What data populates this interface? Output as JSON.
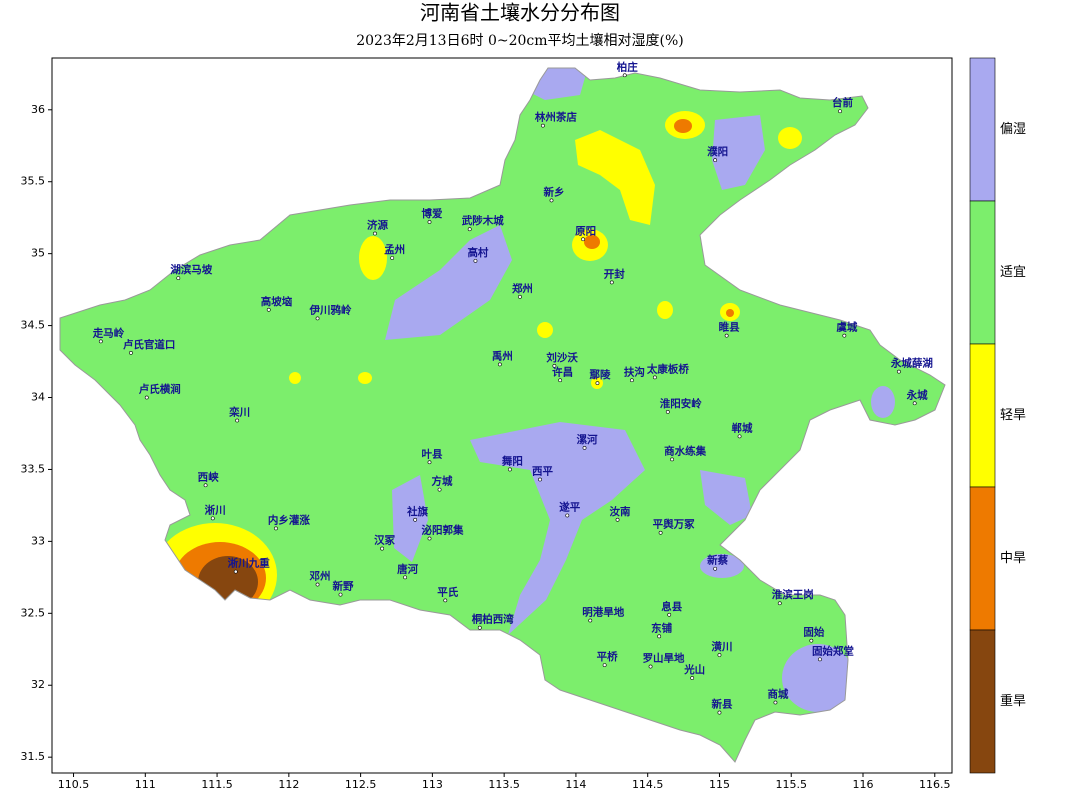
{
  "header": {
    "title": "河南省土壤水分分布图",
    "subtitle": "2023年2月13日6时 0~20cm平均土壤相对湿度(%)"
  },
  "map": {
    "xlim": [
      110.35,
      116.62
    ],
    "ylim": [
      31.39,
      36.36
    ],
    "xticks": [
      110.5,
      111,
      111.5,
      112,
      112.5,
      113,
      113.5,
      114,
      114.5,
      115,
      115.5,
      116,
      116.5
    ],
    "yticks": [
      31.5,
      32,
      32.5,
      33,
      33.5,
      34,
      34.5,
      35,
      35.5,
      36
    ],
    "stations": [
      {
        "name": "柏庄",
        "lon": 114.34,
        "lat": 36.24
      },
      {
        "name": "台前",
        "lon": 115.84,
        "lat": 35.99
      },
      {
        "name": "濮阳",
        "lon": 114.97,
        "lat": 35.65
      },
      {
        "name": "林州茶店",
        "lon": 113.77,
        "lat": 35.89
      },
      {
        "name": "郑州",
        "lon": 113.61,
        "lat": 34.7
      },
      {
        "name": "开封",
        "lon": 114.25,
        "lat": 34.8
      },
      {
        "name": "新乡",
        "lon": 113.83,
        "lat": 35.37
      },
      {
        "name": "原阳",
        "lon": 114.05,
        "lat": 35.1
      },
      {
        "name": "济源",
        "lon": 112.6,
        "lat": 35.14
      },
      {
        "name": "孟州",
        "lon": 112.72,
        "lat": 34.97
      },
      {
        "name": "博爱",
        "lon": 112.98,
        "lat": 35.22
      },
      {
        "name": "武陟木城",
        "lon": 113.26,
        "lat": 35.17
      },
      {
        "name": "高村",
        "lon": 113.3,
        "lat": 34.95
      },
      {
        "name": "湖滨马坡",
        "lon": 111.23,
        "lat": 34.83
      },
      {
        "name": "走马岭",
        "lon": 110.69,
        "lat": 34.39
      },
      {
        "name": "卢氏官道口",
        "lon": 110.9,
        "lat": 34.31
      },
      {
        "name": "卢氏横涧",
        "lon": 111.01,
        "lat": 34.0
      },
      {
        "name": "高坡垴",
        "lon": 111.86,
        "lat": 34.61
      },
      {
        "name": "伊川鸦岭",
        "lon": 112.2,
        "lat": 34.55
      },
      {
        "name": "栾川",
        "lon": 111.64,
        "lat": 33.84
      },
      {
        "name": "西峡",
        "lon": 111.42,
        "lat": 33.39
      },
      {
        "name": "淅川",
        "lon": 111.47,
        "lat": 33.16
      },
      {
        "name": "内乡灌涨",
        "lon": 111.91,
        "lat": 33.09
      },
      {
        "name": "淅川九重",
        "lon": 111.63,
        "lat": 32.79
      },
      {
        "name": "邓州",
        "lon": 112.2,
        "lat": 32.7
      },
      {
        "name": "新野",
        "lon": 112.36,
        "lat": 32.63
      },
      {
        "name": "汉冢",
        "lon": 112.65,
        "lat": 32.95
      },
      {
        "name": "唐河",
        "lon": 112.81,
        "lat": 32.75
      },
      {
        "name": "社旗",
        "lon": 112.88,
        "lat": 33.15
      },
      {
        "name": "方城",
        "lon": 113.05,
        "lat": 33.36
      },
      {
        "name": "泌阳郭集",
        "lon": 112.98,
        "lat": 33.02
      },
      {
        "name": "平氏",
        "lon": 113.09,
        "lat": 32.59
      },
      {
        "name": "桐柏西湾",
        "lon": 113.33,
        "lat": 32.4
      },
      {
        "name": "叶县",
        "lon": 112.98,
        "lat": 33.55
      },
      {
        "name": "禹州",
        "lon": 113.47,
        "lat": 34.23
      },
      {
        "name": "刘沙沃",
        "lon": 113.85,
        "lat": 34.22
      },
      {
        "name": "许昌",
        "lon": 113.89,
        "lat": 34.12
      },
      {
        "name": "鄢陵",
        "lon": 114.15,
        "lat": 34.1
      },
      {
        "name": "扶沟",
        "lon": 114.39,
        "lat": 34.12
      },
      {
        "name": "太康板桥",
        "lon": 114.55,
        "lat": 34.14
      },
      {
        "name": "舞阳",
        "lon": 113.54,
        "lat": 33.5
      },
      {
        "name": "西平",
        "lon": 113.75,
        "lat": 33.43
      },
      {
        "name": "漯河",
        "lon": 114.06,
        "lat": 33.65
      },
      {
        "name": "遂平",
        "lon": 113.94,
        "lat": 33.18
      },
      {
        "name": "汝南",
        "lon": 114.29,
        "lat": 33.15
      },
      {
        "name": "平舆万冢",
        "lon": 114.59,
        "lat": 33.06
      },
      {
        "name": "淮阳安岭",
        "lon": 114.64,
        "lat": 33.9
      },
      {
        "name": "商水练集",
        "lon": 114.67,
        "lat": 33.57
      },
      {
        "name": "郸城",
        "lon": 115.14,
        "lat": 33.73
      },
      {
        "name": "睢县",
        "lon": 115.05,
        "lat": 34.43
      },
      {
        "name": "虞城",
        "lon": 115.87,
        "lat": 34.43
      },
      {
        "name": "永城薛湖",
        "lon": 116.25,
        "lat": 34.18
      },
      {
        "name": "永城",
        "lon": 116.36,
        "lat": 33.96
      },
      {
        "name": "新蔡",
        "lon": 114.97,
        "lat": 32.81
      },
      {
        "name": "息县",
        "lon": 114.65,
        "lat": 32.49
      },
      {
        "name": "明港旱地",
        "lon": 114.1,
        "lat": 32.45
      },
      {
        "name": "东铺",
        "lon": 114.58,
        "lat": 32.34
      },
      {
        "name": "平桥",
        "lon": 114.2,
        "lat": 32.14
      },
      {
        "name": "罗山旱地",
        "lon": 114.52,
        "lat": 32.13
      },
      {
        "name": "潢川",
        "lon": 115.0,
        "lat": 32.21
      },
      {
        "name": "光山",
        "lon": 114.81,
        "lat": 32.05
      },
      {
        "name": "新县",
        "lon": 115.0,
        "lat": 31.81
      },
      {
        "name": "商城",
        "lon": 115.39,
        "lat": 31.88
      },
      {
        "name": "固始",
        "lon": 115.64,
        "lat": 32.31
      },
      {
        "name": "固始郑堂",
        "lon": 115.7,
        "lat": 32.18
      },
      {
        "name": "淮滨王岗",
        "lon": 115.42,
        "lat": 32.57
      }
    ]
  },
  "legend": [
    {
      "label": "偏湿",
      "color": "#a9a9f0"
    },
    {
      "label": "适宜",
      "color": "#7cee6c"
    },
    {
      "label": "轻旱",
      "color": "#ffff00"
    },
    {
      "label": "中旱",
      "color": "#ee7a00"
    },
    {
      "label": "重旱",
      "color": "#86460f"
    }
  ]
}
